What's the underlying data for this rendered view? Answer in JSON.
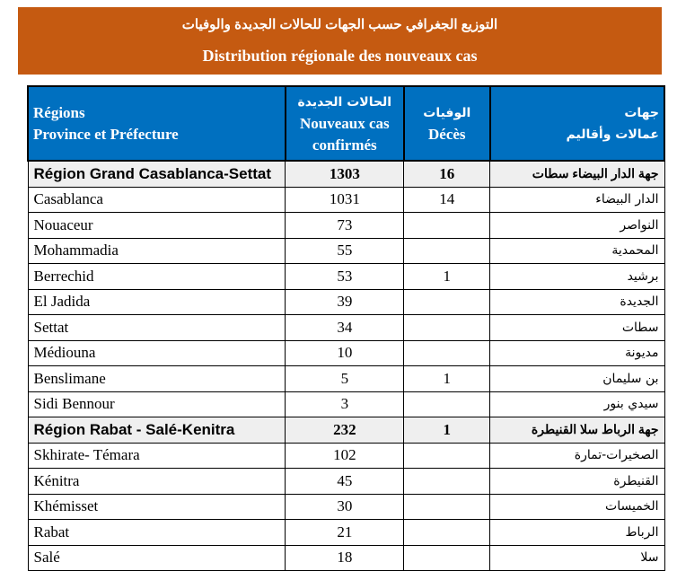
{
  "title_ar": "التوزيع الجغرافي حسب الجهات للحالات الجديدة والوفيات",
  "title_fr": "Distribution régionale des nouveaux cas",
  "headers": {
    "regions_fr": "Régions",
    "province_fr": "Province et Préfecture",
    "cases_ar": "الحالات الجديدة",
    "cases_fr1": "Nouveaux cas",
    "cases_fr2": "confirmés",
    "deaths_ar": "الوفيات",
    "deaths_fr": "Décès",
    "regions_ar": "جهات",
    "province_ar": "عمالات وأقاليم"
  },
  "rows": [
    {
      "name": "Région Grand Casablanca-Settat",
      "cases": "1303",
      "deaths": "16",
      "name_ar": "جهة الدار البيضاء سطات",
      "region": true
    },
    {
      "name": "Casablanca",
      "cases": "1031",
      "deaths": "14",
      "name_ar": "الدار البيضاء"
    },
    {
      "name": "Nouaceur",
      "cases": "73",
      "deaths": "",
      "name_ar": "النواصر"
    },
    {
      "name": "Mohammadia",
      "cases": "55",
      "deaths": "",
      "name_ar": "المحمدية"
    },
    {
      "name": "Berrechid",
      "cases": "53",
      "deaths": "1",
      "name_ar": "برشيد"
    },
    {
      "name": "El Jadida",
      "cases": "39",
      "deaths": "",
      "name_ar": "الجديدة"
    },
    {
      "name": "Settat",
      "cases": "34",
      "deaths": "",
      "name_ar": "سطات"
    },
    {
      "name": "Médiouna",
      "cases": "10",
      "deaths": "",
      "name_ar": "مديونة"
    },
    {
      "name": "Benslimane",
      "cases": "5",
      "deaths": "1",
      "name_ar": "بن سليمان"
    },
    {
      "name": "Sidi Bennour",
      "cases": "3",
      "deaths": "",
      "name_ar": "سيدي بنور"
    },
    {
      "name": "Région Rabat - Salé-Kenitra",
      "cases": "232",
      "deaths": "1",
      "name_ar": "جهة الرباط سلا القنيطرة",
      "region": true
    },
    {
      "name": "Skhirate- Témara",
      "cases": "102",
      "deaths": "",
      "name_ar": "الصخيرات-تمارة"
    },
    {
      "name": "Kénitra",
      "cases": "45",
      "deaths": "",
      "name_ar": "القنيطرة"
    },
    {
      "name": "Khémisset",
      "cases": "30",
      "deaths": "",
      "name_ar": "الخميسات"
    },
    {
      "name": "Rabat",
      "cases": "21",
      "deaths": "",
      "name_ar": "الرباط"
    },
    {
      "name": "Salé",
      "cases": "18",
      "deaths": "",
      "name_ar": "سلا"
    }
  ],
  "colors": {
    "banner": "#c55a11",
    "header": "#0070c0",
    "region_row": "#efefef"
  }
}
